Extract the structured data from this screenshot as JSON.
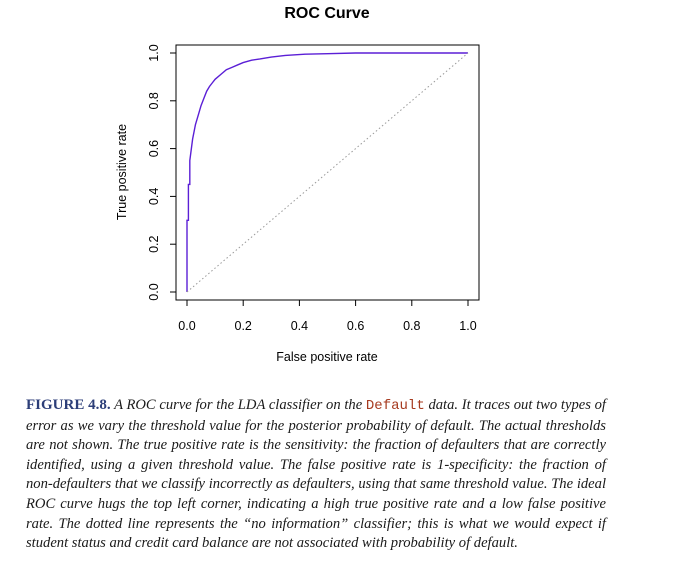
{
  "chart_data": {
    "type": "line",
    "title": "ROC Curve",
    "xlabel": "False positive rate",
    "ylabel": "True positive rate",
    "xlim": [
      0,
      1
    ],
    "ylim": [
      0,
      1
    ],
    "xticks": [
      "0.0",
      "0.2",
      "0.4",
      "0.6",
      "0.8",
      "1.0"
    ],
    "yticks": [
      "0.0",
      "0.2",
      "0.4",
      "0.6",
      "0.8",
      "1.0"
    ],
    "grid": false,
    "series": [
      {
        "style": "solid",
        "color": "#5b1fd6",
        "x": [
          0.0,
          0.0,
          0.005,
          0.005,
          0.01,
          0.01,
          0.02,
          0.03,
          0.04,
          0.05,
          0.06,
          0.07,
          0.08,
          0.09,
          0.1,
          0.12,
          0.14,
          0.16,
          0.18,
          0.2,
          0.23,
          0.26,
          0.3,
          0.35,
          0.42,
          0.5,
          0.6,
          0.75,
          1.0
        ],
        "y": [
          0.0,
          0.3,
          0.3,
          0.45,
          0.45,
          0.55,
          0.64,
          0.7,
          0.74,
          0.78,
          0.81,
          0.84,
          0.86,
          0.875,
          0.89,
          0.91,
          0.93,
          0.94,
          0.95,
          0.96,
          0.97,
          0.975,
          0.983,
          0.99,
          0.995,
          0.997,
          1.0,
          1.0,
          1.0
        ]
      },
      {
        "style": "dotted",
        "color": "#999999",
        "x": [
          0,
          1
        ],
        "y": [
          0,
          1
        ]
      }
    ]
  },
  "caption": {
    "label": "FIGURE 4.8.",
    "text_before": "A ROC curve for the LDA classifier on the",
    "code": "Default",
    "text_after": "data. It traces out two types of error as we vary the threshold value for the posterior probability of default. The actual thresholds are not shown. The true positive rate is the sensitivity: the fraction of defaulters that are correctly identified, using a given threshold value. The false positive rate is 1-specificity: the fraction of non-defaulters that we classify incorrectly as defaulters, using that same threshold value. The ideal ROC curve hugs the top left corner, indicating a high true positive rate and a low false positive rate. The dotted line represents the “no information” classifier; this is what we would expect if student status and credit card balance are not associated with probability of default."
  }
}
